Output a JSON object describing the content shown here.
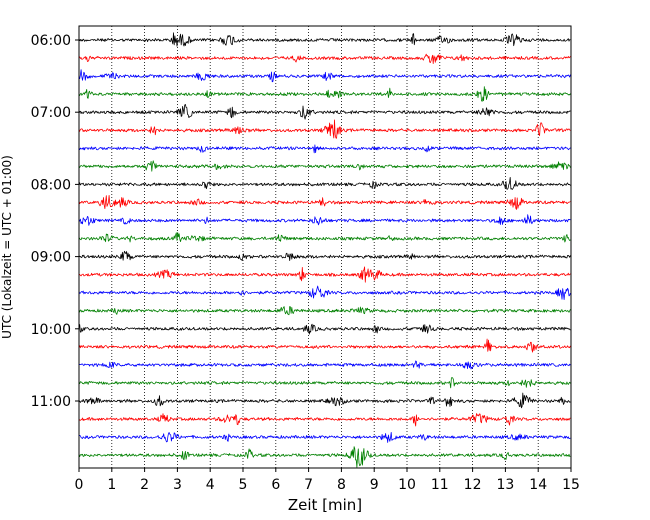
{
  "chart_data": {
    "type": "line",
    "description_kind": "helicorder",
    "xlabel": "Zeit  [min]",
    "ylabel": "UTC (Lokalzeit = UTC + 01:00)",
    "xlim": [
      0,
      15
    ],
    "x_ticks": [
      0,
      1,
      2,
      3,
      4,
      5,
      6,
      7,
      8,
      9,
      10,
      11,
      12,
      13,
      14,
      15
    ],
    "x_tick_labels": [
      "0",
      "1",
      "2",
      "3",
      "4",
      "5",
      "6",
      "7",
      "8",
      "9",
      "10",
      "11",
      "12",
      "13",
      "14",
      "15"
    ],
    "y_tick_labels": [
      "06:00",
      "07:00",
      "08:00",
      "09:00",
      "10:00",
      "11:00"
    ],
    "grid": "vertical-dotted",
    "trace_colors": [
      "#000000",
      "#ff0000",
      "#0000ff",
      "#008000"
    ],
    "trace_row_count": 24,
    "rows_per_hour": 4
  }
}
